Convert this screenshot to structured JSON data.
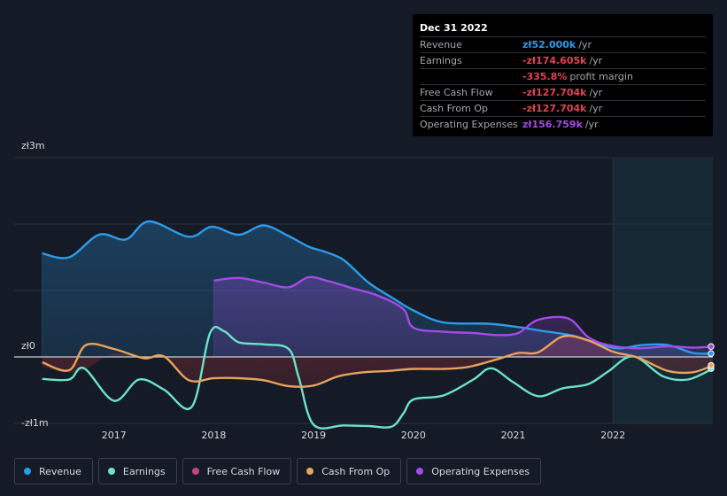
{
  "tooltip": {
    "date": "Dec 31 2022",
    "rows": [
      {
        "label": "Revenue",
        "value": "zł52.000k",
        "unit": "/yr",
        "color": "#2d9bea"
      },
      {
        "label": "Earnings",
        "value": "-zł174.605k",
        "unit": "/yr",
        "color": "#e0444f"
      },
      {
        "label": "",
        "value": "-335.8%",
        "unit": "profit margin",
        "color": "#e0444f"
      },
      {
        "label": "Free Cash Flow",
        "value": "-zł127.704k",
        "unit": "/yr",
        "color": "#e0444f"
      },
      {
        "label": "Cash From Op",
        "value": "-zł127.704k",
        "unit": "/yr",
        "color": "#e0444f"
      },
      {
        "label": "Operating Expenses",
        "value": "zł156.759k",
        "unit": "/yr",
        "color": "#a54ae8"
      }
    ]
  },
  "legend": [
    {
      "label": "Revenue",
      "color": "#2d9bea"
    },
    {
      "label": "Earnings",
      "color": "#6be3c9"
    },
    {
      "label": "Free Cash Flow",
      "color": "#c6457f"
    },
    {
      "label": "Cash From Op",
      "color": "#e8a35c"
    },
    {
      "label": "Operating Expenses",
      "color": "#a54ae8"
    }
  ],
  "chart_data": {
    "type": "area",
    "title": "",
    "ylim": [
      -1000,
      3000
    ],
    "y_tick_labels": [
      {
        "value": 3000,
        "label": "zł3m"
      },
      {
        "value": 0,
        "label": "zł0"
      },
      {
        "value": -1000,
        "label": "-zł1m"
      }
    ],
    "xlim": [
      2016.0,
      2023.0
    ],
    "x_ticks": [
      2017,
      2018,
      2019,
      2020,
      2021,
      2022
    ],
    "x_tick_labels": [
      "2017",
      "2018",
      "2019",
      "2020",
      "2021",
      "2022"
    ],
    "forecast_start": 2022.0,
    "series": [
      {
        "name": "Revenue",
        "color": "#2d9bea",
        "x": [
          2016.28,
          2016.55,
          2016.85,
          2017.12,
          2017.35,
          2017.75,
          2017.98,
          2018.25,
          2018.5,
          2018.75,
          2018.95,
          2019.1,
          2019.3,
          2019.55,
          2019.8,
          2020.0,
          2020.3,
          2020.75,
          2021.05,
          2021.3,
          2021.6,
          2021.85,
          2022.05,
          2022.3,
          2022.55,
          2022.8,
          2023.0
        ],
        "values": [
          1560,
          1500,
          1840,
          1770,
          2040,
          1810,
          1960,
          1840,
          1980,
          1820,
          1660,
          1590,
          1460,
          1120,
          880,
          700,
          520,
          500,
          450,
          390,
          320,
          200,
          130,
          180,
          180,
          60,
          52
        ]
      },
      {
        "name": "Earnings",
        "color": "#6be3c9",
        "x": [
          2016.28,
          2016.55,
          2016.7,
          2017.0,
          2017.25,
          2017.5,
          2017.78,
          2017.96,
          2018.1,
          2018.25,
          2018.5,
          2018.75,
          2018.85,
          2019.0,
          2019.3,
          2019.55,
          2019.78,
          2019.9,
          2020.0,
          2020.3,
          2020.6,
          2020.78,
          2021.0,
          2021.25,
          2021.5,
          2021.75,
          2021.95,
          2022.2,
          2022.5,
          2022.75,
          2023.0
        ],
        "values": [
          -330,
          -340,
          -170,
          -660,
          -340,
          -490,
          -750,
          350,
          390,
          220,
          190,
          120,
          -300,
          -1020,
          -1030,
          -1040,
          -1050,
          -850,
          -640,
          -580,
          -340,
          -170,
          -380,
          -590,
          -470,
          -410,
          -220,
          10,
          -290,
          -340,
          -175
        ]
      },
      {
        "name": "Free Cash Flow",
        "color": "#c6457f",
        "x": [
          2016.28,
          2016.55,
          2016.72,
          2017.0,
          2017.3,
          2017.5,
          2017.75,
          2018.0,
          2018.25,
          2018.5,
          2018.75,
          2019.0,
          2019.25,
          2019.5,
          2019.75,
          2020.0,
          2020.3,
          2020.55,
          2020.85,
          2021.05,
          2021.25,
          2021.5,
          2021.75,
          2022.0,
          2022.25,
          2022.55,
          2022.8,
          2023.0
        ],
        "values": [
          -150,
          -240,
          -180,
          50,
          -30,
          10,
          -350,
          -320,
          -320,
          -350,
          -440,
          -430,
          -290,
          -230,
          -210,
          -180,
          -180,
          -150,
          -30,
          60,
          70,
          310,
          250,
          80,
          -10,
          -210,
          -230,
          -128
        ]
      },
      {
        "name": "Cash From Op",
        "color": "#e8a35c",
        "x": [
          2016.28,
          2016.55,
          2016.72,
          2017.0,
          2017.3,
          2017.5,
          2017.75,
          2018.0,
          2018.25,
          2018.5,
          2018.75,
          2019.0,
          2019.25,
          2019.5,
          2019.75,
          2020.0,
          2020.3,
          2020.55,
          2020.85,
          2021.05,
          2021.25,
          2021.5,
          2021.75,
          2022.0,
          2022.25,
          2022.55,
          2022.8,
          2023.0
        ],
        "values": [
          -80,
          -200,
          180,
          120,
          -20,
          10,
          -350,
          -320,
          -320,
          -350,
          -440,
          -430,
          -290,
          -230,
          -210,
          -180,
          -180,
          -150,
          -30,
          60,
          70,
          310,
          250,
          80,
          -10,
          -210,
          -230,
          -128
        ]
      },
      {
        "name": "Operating Expenses",
        "color": "#a54ae8",
        "x": [
          2018.0,
          2018.25,
          2018.5,
          2018.75,
          2018.95,
          2019.15,
          2019.4,
          2019.65,
          2019.9,
          2020.0,
          2020.3,
          2020.6,
          2020.85,
          2021.05,
          2021.25,
          2021.55,
          2021.75,
          2021.95,
          2022.25,
          2022.55,
          2022.8,
          2023.0
        ],
        "values": [
          1150,
          1190,
          1120,
          1050,
          1200,
          1140,
          1030,
          920,
          720,
          440,
          380,
          360,
          330,
          360,
          560,
          580,
          300,
          180,
          130,
          160,
          140,
          157
        ]
      }
    ]
  }
}
